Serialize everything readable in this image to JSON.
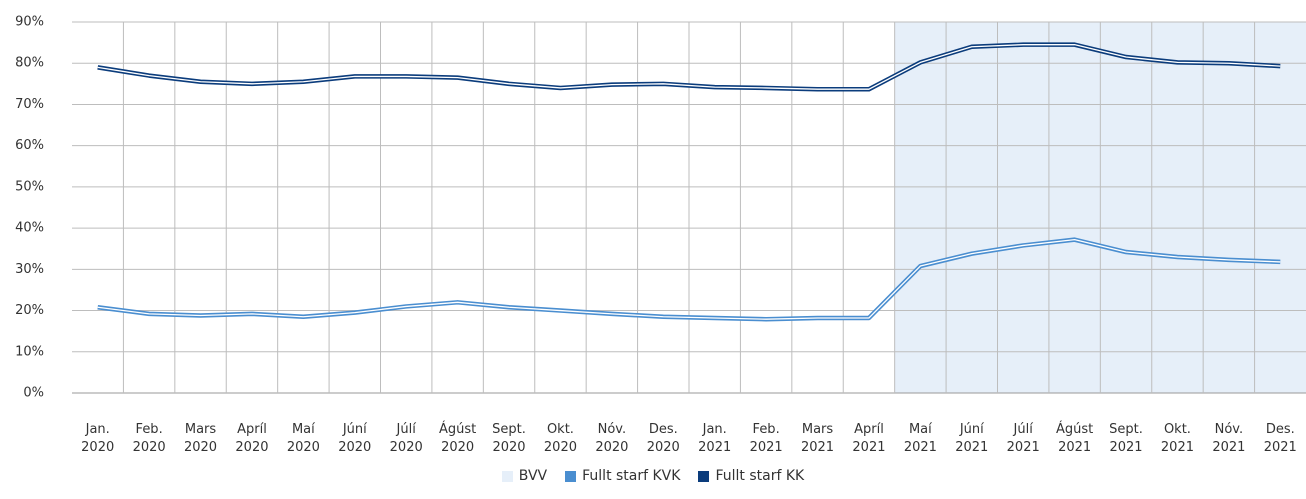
{
  "chart_data": {
    "type": "line",
    "categories": [
      "Jan. 2020",
      "Feb. 2020",
      "Mars 2020",
      "Apríl 2020",
      "Maí 2020",
      "Júní 2020",
      "Júlí 2020",
      "Ágúst 2020",
      "Sept. 2020",
      "Okt. 2020",
      "Nóv. 2020",
      "Des. 2020",
      "Jan. 2021",
      "Feb. 2021",
      "Mars 2021",
      "Apríl 2021",
      "Maí 2021",
      "Júní 2021",
      "Júlí 2021",
      "Ágúst 2021",
      "Sept. 2021",
      "Okt. 2021",
      "Nóv. 2021",
      "Des. 2021"
    ],
    "series": [
      {
        "name": "BVV",
        "type": "area",
        "color": "#e6eff9",
        "values": [
          null,
          null,
          null,
          null,
          null,
          null,
          null,
          null,
          null,
          null,
          null,
          null,
          null,
          null,
          null,
          null,
          90,
          90,
          90,
          90,
          90,
          90,
          90,
          90
        ]
      },
      {
        "name": "Fullt starf KVK",
        "color": "#4a8ed0",
        "values": [
          20.8,
          19.2,
          18.8,
          19.2,
          18.5,
          19.5,
          21,
          22,
          20.8,
          20,
          19.2,
          18.5,
          18.2,
          17.9,
          18.2,
          18.2,
          30.8,
          33.8,
          35.8,
          37.2,
          34.2,
          33,
          32.3,
          31.8
        ]
      },
      {
        "name": "Fullt starf KK",
        "color": "#0b3c7c",
        "values": [
          79,
          77,
          75.5,
          75,
          75.5,
          76.8,
          76.8,
          76.5,
          75,
          74,
          74.8,
          75,
          74.2,
          74,
          73.7,
          73.7,
          80.2,
          84,
          84.5,
          84.5,
          81.5,
          80.2,
          80,
          79.3
        ]
      }
    ],
    "ylim": [
      0,
      90
    ],
    "yticks": [
      {
        "value": 0,
        "label": "0%"
      },
      {
        "value": 10,
        "label": "10%"
      },
      {
        "value": 20,
        "label": "20%"
      },
      {
        "value": 30,
        "label": "30%"
      },
      {
        "value": 40,
        "label": "40%"
      },
      {
        "value": 50,
        "label": "50%"
      },
      {
        "value": 60,
        "label": "60%"
      },
      {
        "value": 70,
        "label": "70%"
      },
      {
        "value": 80,
        "label": "80%"
      },
      {
        "value": 90,
        "label": "90%"
      }
    ],
    "grid": true
  }
}
